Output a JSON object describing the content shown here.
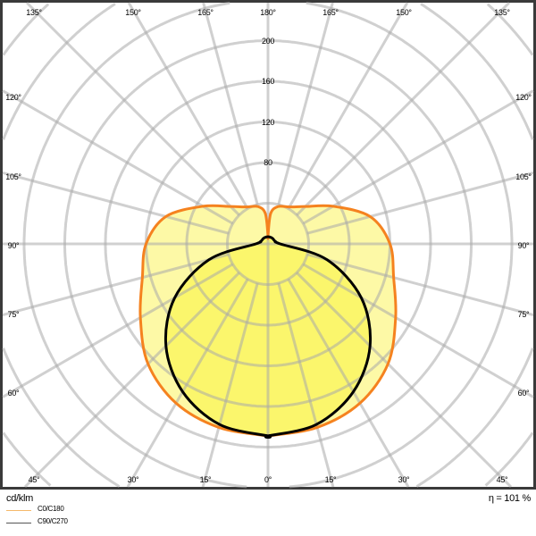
{
  "chart_data": {
    "type": "polar",
    "unit_label": "cd/klm",
    "efficiency_label": "η = 101 %",
    "radial_ticks": [
      80,
      120,
      160,
      200
    ],
    "ring_step": 40,
    "angle_labels": {
      "top": [
        "135°",
        "150°",
        "165°",
        "180°",
        "165°",
        "150°",
        "135°"
      ],
      "left": [
        "120°",
        "105°",
        "90°",
        "75°",
        "60°"
      ],
      "right": [
        "120°",
        "105°",
        "90°",
        "75°",
        "60°"
      ],
      "bottom": [
        "45°",
        "30°",
        "15°",
        "0°",
        "15°",
        "30°",
        "45°"
      ]
    },
    "angles": [
      0,
      15,
      30,
      45,
      60,
      75,
      90,
      105,
      120,
      135,
      150,
      165,
      175,
      180
    ],
    "series": [
      {
        "name": "C0/C180",
        "color": "#f5821f",
        "fill": "#fdf9a6",
        "values": [
          189,
          187,
          181,
          167,
          145,
          128,
          120,
          104,
          74,
          52,
          42,
          38,
          30,
          8
        ]
      },
      {
        "name": "C90/C270",
        "color": "#000000",
        "fill": "#fbf66c",
        "values": [
          189,
          184,
          168,
          142,
          106,
          60,
          12,
          8,
          7,
          7,
          7,
          7,
          7,
          7
        ]
      }
    ],
    "grid": true,
    "legend_position": "bottom-left"
  }
}
